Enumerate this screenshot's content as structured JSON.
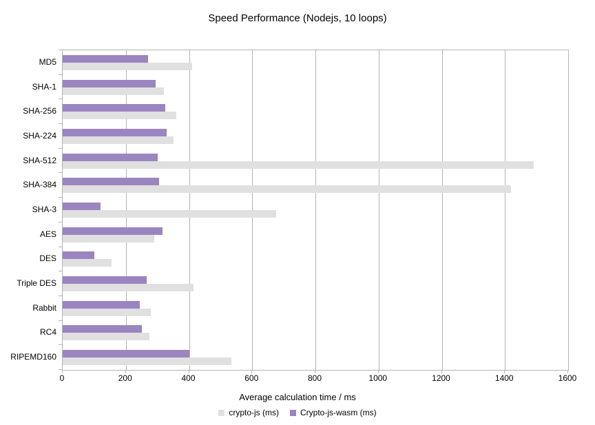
{
  "title": "Speed Performance (Nodejs, 10 loops)",
  "chart_data": {
    "type": "bar",
    "orientation": "horizontal",
    "title": "Speed Performance (Nodejs, 10 loops)",
    "xlabel": "Average calculation time / ms",
    "ylabel": "",
    "xlim": [
      0,
      1600
    ],
    "xticks": [
      0,
      200,
      400,
      600,
      800,
      1000,
      1200,
      1400,
      1600
    ],
    "grid": true,
    "legend_position": "bottom",
    "categories": [
      "MD5",
      "SHA-1",
      "SHA-256",
      "SHA-224",
      "SHA-512",
      "SHA-384",
      "SHA-3",
      "AES",
      "DES",
      "Triple DES",
      "Rabbit",
      "RC4",
      "RIPEMD160"
    ],
    "series": [
      {
        "name": "crypto-js (ms)",
        "color": "#e0e0e0",
        "values": [
          410,
          320,
          360,
          350,
          1490,
          1420,
          675,
          290,
          155,
          415,
          280,
          275,
          535
        ]
      },
      {
        "name": "Crypto-js-wasm (ms)",
        "color": "#9a85c1",
        "values": [
          270,
          295,
          325,
          330,
          300,
          305,
          120,
          315,
          100,
          265,
          245,
          250,
          400
        ]
      }
    ]
  },
  "colors": {
    "grid": "#b3b3b3",
    "axis": "#b3b3b3",
    "text": "#000000",
    "background": "#ffffff"
  }
}
